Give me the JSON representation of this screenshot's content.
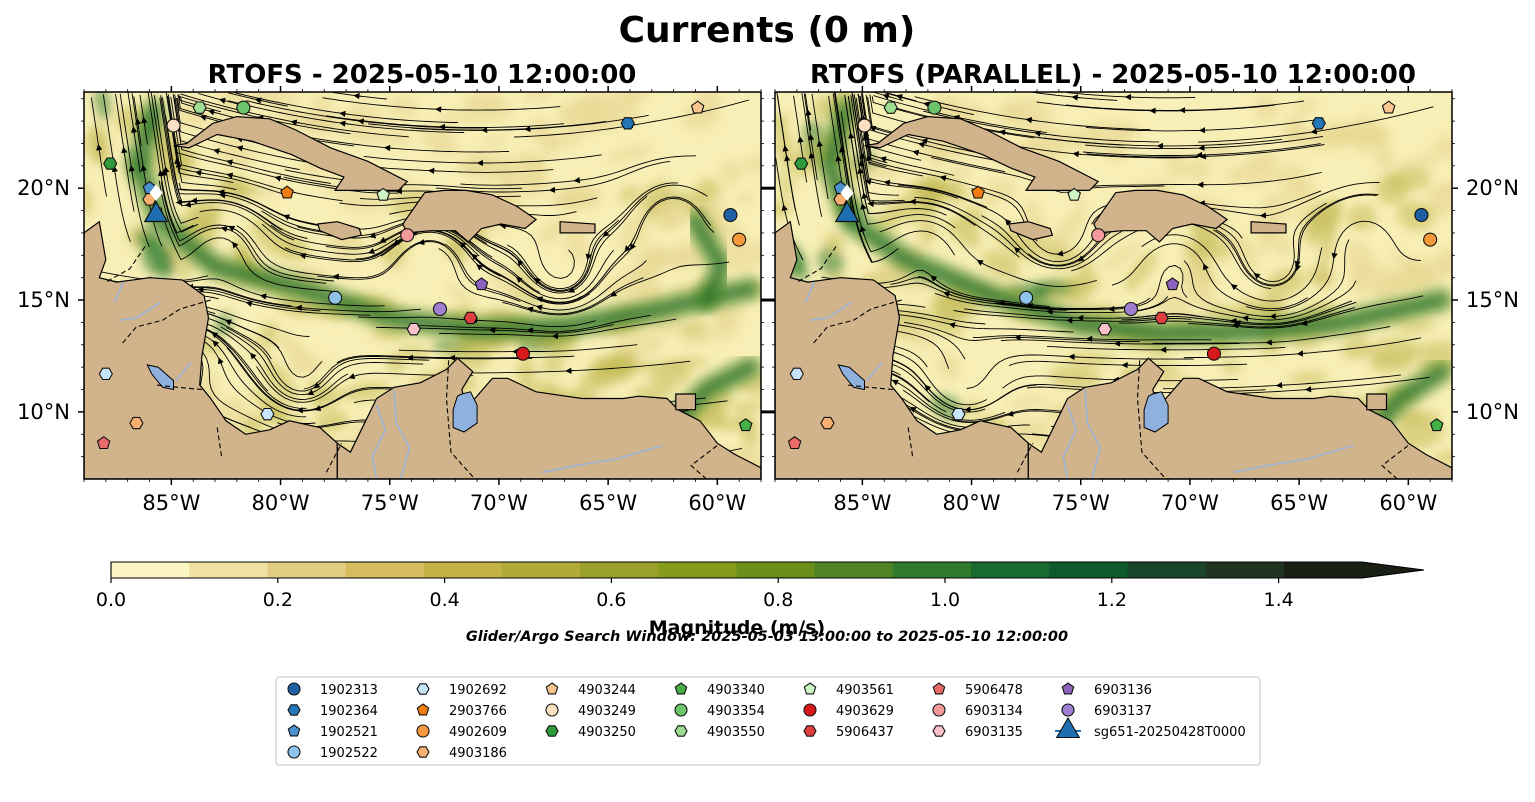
{
  "figure": {
    "suptitle": "Currents (0 m)",
    "search_window": "Glider/Argo Search Window: 2025-05-03 13:00:00 to 2025-05-10 12:00:00"
  },
  "panels": [
    {
      "title": "RTOFS - 2025-05-10 12:00:00"
    },
    {
      "title": "RTOFS (PARALLEL) - 2025-05-10 12:00:00"
    }
  ],
  "map": {
    "lon_range": [
      -89,
      -58
    ],
    "lat_range": [
      7,
      24.3
    ],
    "lon_ticks": [
      {
        "value": -85,
        "label": "85°W"
      },
      {
        "value": -80,
        "label": "80°W"
      },
      {
        "value": -75,
        "label": "75°W"
      },
      {
        "value": -70,
        "label": "70°W"
      },
      {
        "value": -65,
        "label": "65°W"
      },
      {
        "value": -60,
        "label": "60°W"
      }
    ],
    "lat_ticks": [
      {
        "value": 10,
        "label": "10°N"
      },
      {
        "value": 15,
        "label": "15°N"
      },
      {
        "value": 20,
        "label": "20°N"
      }
    ],
    "colors": {
      "land": "#d2b48c",
      "coast": "#000000",
      "rivers": "#9bb3d6",
      "lake": "#8fb1de",
      "ocean_low": "#f8efb6",
      "ocean_mid": "#c3b955",
      "ocean_high": "#2d7a2a",
      "stream": "#000000"
    }
  },
  "colorbar": {
    "label": "Magnitude (m/s)",
    "range": [
      0,
      1.5
    ],
    "tick_labels": [
      "0.0",
      "0.2",
      "0.4",
      "0.6",
      "0.8",
      "1.0",
      "1.2",
      "1.4"
    ],
    "tick_values": [
      0,
      0.2,
      0.4,
      0.6,
      0.8,
      1.0,
      1.2,
      1.4
    ],
    "extend": "max",
    "colors": [
      "#fbf4c3",
      "#efe1a1",
      "#e3cd83",
      "#d6bb5f",
      "#c4b244",
      "#b1aa36",
      "#9aa12b",
      "#869a1c",
      "#6b8f1a",
      "#4f8423",
      "#2f7b2b",
      "#196a2e",
      "#0f5a2d",
      "#18452a",
      "#1f3521",
      "#191f14"
    ]
  },
  "legend": {
    "items": [
      {
        "label": "1902313",
        "color": "#1f5fa6",
        "marker": "circle"
      },
      {
        "label": "1902364",
        "color": "#2376b7",
        "marker": "hexagon"
      },
      {
        "label": "1902521",
        "color": "#4a91cf",
        "marker": "pentagon"
      },
      {
        "label": "1902522",
        "color": "#8fc3ea",
        "marker": "circle"
      },
      {
        "label": "1902692",
        "color": "#c6e3f7",
        "marker": "hexagon"
      },
      {
        "label": "2903766",
        "color": "#ef7d0f",
        "marker": "pentagon"
      },
      {
        "label": "4902609",
        "color": "#f59a3a",
        "marker": "circle"
      },
      {
        "label": "4903186",
        "color": "#f7b071",
        "marker": "hexagon"
      },
      {
        "label": "4903244",
        "color": "#fbc591",
        "marker": "pentagon"
      },
      {
        "label": "4903249",
        "color": "#fde0c2",
        "marker": "circle"
      },
      {
        "label": "4903250",
        "color": "#2e9a3b",
        "marker": "hexagon"
      },
      {
        "label": "4903340",
        "color": "#45b045",
        "marker": "pentagon"
      },
      {
        "label": "4903354",
        "color": "#6cc56a",
        "marker": "circle"
      },
      {
        "label": "4903550",
        "color": "#9fdd93",
        "marker": "hexagon"
      },
      {
        "label": "4903561",
        "color": "#cff5c4",
        "marker": "pentagon"
      },
      {
        "label": "4903629",
        "color": "#d7191c",
        "marker": "circle"
      },
      {
        "label": "5906437",
        "color": "#df3f3f",
        "marker": "hexagon"
      },
      {
        "label": "5906478",
        "color": "#ea6a6a",
        "marker": "pentagon"
      },
      {
        "label": "6903134",
        "color": "#f29a9a",
        "marker": "circle"
      },
      {
        "label": "6903135",
        "color": "#f9c1c8",
        "marker": "hexagon"
      },
      {
        "label": "6903136",
        "color": "#8e63c0",
        "marker": "pentagon"
      },
      {
        "label": "6903137",
        "color": "#a07fd0",
        "marker": "circle"
      },
      {
        "label": "sg651-20250428T0000",
        "color": "#1f6fb0",
        "marker": "triangle"
      }
    ]
  },
  "floats": [
    {
      "id": "1902313",
      "lon": -59.4,
      "lat": 18.8
    },
    {
      "id": "1902364",
      "lon": -64.1,
      "lat": 22.9
    },
    {
      "id": "1902521",
      "lon": -86.0,
      "lat": 20.0
    },
    {
      "id": "1902522",
      "lon": -77.5,
      "lat": 15.1
    },
    {
      "id": "1902692",
      "lon": -88.0,
      "lat": 11.7
    },
    {
      "id": "2903766",
      "lon": -79.7,
      "lat": 19.8
    },
    {
      "id": "4902609",
      "lon": -59.0,
      "lat": 17.7
    },
    {
      "id": "4903186",
      "lon": -86.0,
      "lat": 19.5
    },
    {
      "id": "4903244",
      "lon": -60.9,
      "lat": 23.6
    },
    {
      "id": "4903249",
      "lon": -84.9,
      "lat": 22.8
    },
    {
      "id": "4903250",
      "lon": -87.8,
      "lat": 21.1
    },
    {
      "id": "4903340",
      "lon": -58.7,
      "lat": 9.4
    },
    {
      "id": "4903354",
      "lon": -81.7,
      "lat": 23.6
    },
    {
      "id": "4903550",
      "lon": -83.7,
      "lat": 23.6
    },
    {
      "id": "4903561",
      "lon": -75.3,
      "lat": 19.7
    },
    {
      "id": "4903629",
      "lon": -68.9,
      "lat": 12.6
    },
    {
      "id": "5906437",
      "lon": -71.3,
      "lat": 14.2
    },
    {
      "id": "5906478",
      "lon": -88.1,
      "lat": 8.6
    },
    {
      "id": "6903134",
      "lon": -74.2,
      "lat": 17.9
    },
    {
      "id": "6903135",
      "lon": -73.9,
      "lat": 13.7
    },
    {
      "id": "6903136",
      "lon": -70.8,
      "lat": 15.7
    },
    {
      "id": "6903137",
      "lon": -72.7,
      "lat": 14.6
    },
    {
      "id": "1902692b",
      "lon": -80.6,
      "lat": 9.9
    },
    {
      "id": "4903186b",
      "lon": -86.6,
      "lat": 9.5
    }
  ],
  "glider": {
    "id": "sg651-20250428T0000",
    "lon": -85.7,
    "lat": 18.8
  }
}
